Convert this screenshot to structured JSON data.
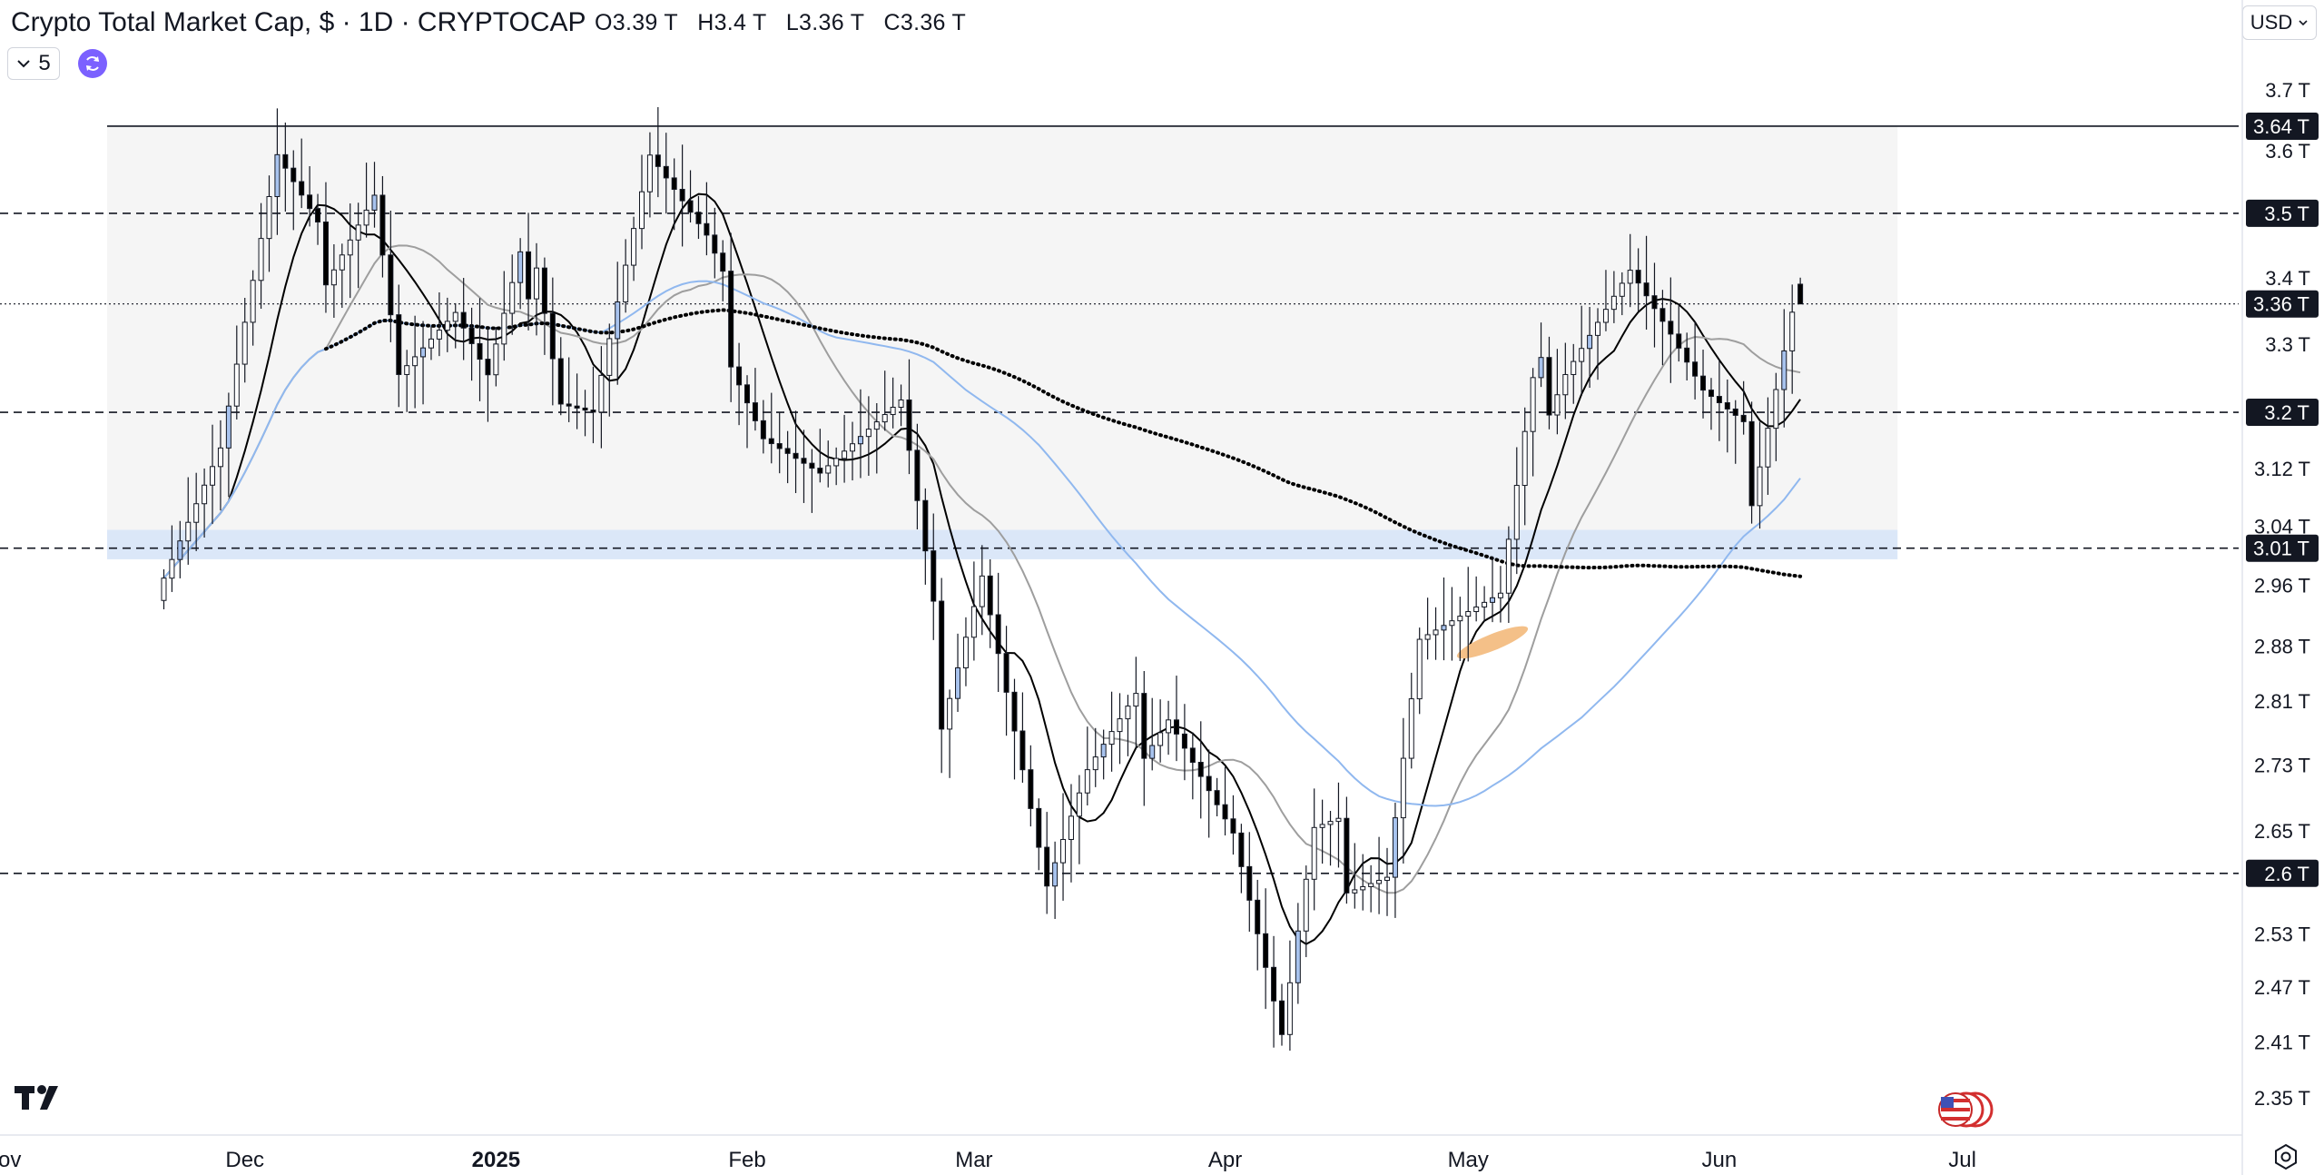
{
  "header": {
    "title": "Crypto Total Market Cap, $ · 1D · CRYPTOCAP",
    "ohlc": {
      "open": "O3.39 T",
      "high": "H3.4 T",
      "low": "L3.36 T",
      "close": "C3.36 T"
    },
    "indicator_count": "5",
    "currency": "USD"
  },
  "icons": [
    "chevron-down-icon",
    "refresh-icon",
    "chevron-down-icon",
    "settings-icon",
    "tradingview-logo",
    "us-flag-icon"
  ],
  "colors": {
    "up_candle": "#ffffff",
    "down_candle": "#000000",
    "highlight_candle": "#a8c3ee",
    "ma_short": "#000000",
    "ma_mid": "#9e9e9e",
    "ma_blue": "#90b8ef",
    "range_box": "#f5f5f5",
    "support_band": "#dbe7f8",
    "orange_mark": "#f4c088"
  },
  "chart_data": {
    "type": "candlestick",
    "title": "Crypto Total Market Cap, $ · 1D · CRYPTOCAP",
    "x_tick_labels": [
      "Nov",
      "Dec",
      "2025",
      "Feb",
      "Mar",
      "Apr",
      "May",
      "Jun",
      "Jul"
    ],
    "y_tick_labels": [
      "3.7 T",
      "3.6 T",
      "3.4 T",
      "3.3 T",
      "3.12 T",
      "3.04 T",
      "2.96 T",
      "2.88 T",
      "2.81 T",
      "2.73 T",
      "2.65 T",
      "2.53 T",
      "2.47 T",
      "2.41 T",
      "2.35 T"
    ],
    "y_scale": "log",
    "ylim": [
      2.31,
      3.78
    ],
    "grid": false,
    "horizontal_levels": [
      {
        "label": "3.64 T",
        "value": 3.64,
        "style": "solid"
      },
      {
        "label": "3.5 T",
        "value": 3.5,
        "style": "dashed"
      },
      {
        "label": "3.36 T",
        "value": 3.36,
        "style": "dotted"
      },
      {
        "label": "3.2 T",
        "value": 3.2,
        "style": "dashed"
      },
      {
        "label": "3.01 T",
        "value": 3.01,
        "style": "dashed"
      },
      {
        "label": "2.6 T",
        "value": 2.6,
        "style": "dashed"
      }
    ],
    "range_box": {
      "from": "2024-11-14",
      "to": "2025-06-23",
      "low": 3.01,
      "high": 3.64
    },
    "support_band": {
      "from": "2024-11-14",
      "to": "2025-06-23",
      "low": 2.995,
      "high": 3.035
    },
    "anchors": [
      {
        "date": "2024-11-21",
        "close": 3.0
      },
      {
        "date": "2024-11-28",
        "close": 3.15
      },
      {
        "date": "2024-12-05",
        "close": 3.56
      },
      {
        "date": "2024-12-10",
        "close": 3.43
      },
      {
        "date": "2024-12-17",
        "close": 3.56
      },
      {
        "date": "2024-12-20",
        "close": 3.27
      },
      {
        "date": "2024-12-27",
        "close": 3.33
      },
      {
        "date": "2024-12-31",
        "close": 3.22
      },
      {
        "date": "2025-01-06",
        "close": 3.47
      },
      {
        "date": "2025-01-09",
        "close": 3.25
      },
      {
        "date": "2025-01-13",
        "close": 3.22
      },
      {
        "date": "2025-01-20",
        "close": 3.58
      },
      {
        "date": "2025-01-27",
        "close": 3.42
      },
      {
        "date": "2025-02-03",
        "close": 3.2
      },
      {
        "date": "2025-02-10",
        "close": 3.12
      },
      {
        "date": "2025-02-20",
        "close": 3.18
      },
      {
        "date": "2025-02-25",
        "close": 2.82
      },
      {
        "date": "2025-03-02",
        "close": 3.0
      },
      {
        "date": "2025-03-10",
        "close": 2.58
      },
      {
        "date": "2025-03-15",
        "close": 2.7
      },
      {
        "date": "2025-03-25",
        "close": 2.82
      },
      {
        "date": "2025-04-02",
        "close": 2.65
      },
      {
        "date": "2025-04-08",
        "close": 2.4
      },
      {
        "date": "2025-04-12",
        "close": 2.62
      },
      {
        "date": "2025-04-21",
        "close": 2.62
      },
      {
        "date": "2025-04-25",
        "close": 2.9
      },
      {
        "date": "2025-05-05",
        "close": 2.92
      },
      {
        "date": "2025-05-09",
        "close": 3.2
      },
      {
        "date": "2025-05-13",
        "close": 3.3
      },
      {
        "date": "2025-05-21",
        "close": 3.42
      },
      {
        "date": "2025-05-26",
        "close": 3.3
      },
      {
        "date": "2025-05-30",
        "close": 3.2
      },
      {
        "date": "2025-06-05",
        "close": 3.12
      },
      {
        "date": "2025-06-10",
        "close": 3.38
      },
      {
        "date": "2025-06-11",
        "close": 3.36
      }
    ],
    "last_bar": {
      "open": 3.39,
      "high": 3.4,
      "low": 3.36,
      "close": 3.36
    },
    "moving_averages": [
      {
        "color": "#000000",
        "style": "solid"
      },
      {
        "color": "#9e9e9e",
        "style": "solid"
      },
      {
        "color": "#90b8ef",
        "style": "solid"
      },
      {
        "color": "#000000",
        "style": "dotted"
      }
    ]
  }
}
